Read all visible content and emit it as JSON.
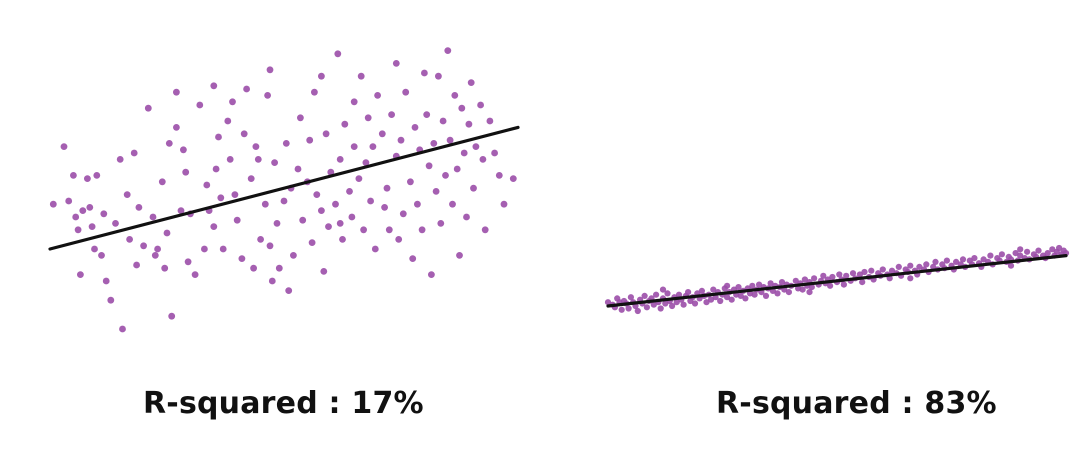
{
  "chart_data": [
    {
      "type": "scatter",
      "title": "R-squared : 17%",
      "caption": "R-squared : 17%",
      "xlabel": "",
      "ylabel": "",
      "grid": false,
      "axes_visible": false,
      "xlim": [
        0,
        100
      ],
      "ylim": [
        0,
        100
      ],
      "point_color": "#9b4ea8",
      "line_color": "#111111",
      "trend_line": {
        "x": [
          0,
          100
        ],
        "y": [
          30,
          68
        ]
      },
      "points": [
        [
          0.7,
          44
        ],
        [
          3,
          62
        ],
        [
          4,
          45
        ],
        [
          5,
          53
        ],
        [
          5.5,
          40
        ],
        [
          6,
          36
        ],
        [
          6.5,
          22
        ],
        [
          7,
          42
        ],
        [
          8,
          52
        ],
        [
          8.5,
          43
        ],
        [
          9,
          37
        ],
        [
          9.5,
          30
        ],
        [
          10,
          53
        ],
        [
          11,
          28
        ],
        [
          11.5,
          41
        ],
        [
          12,
          20
        ],
        [
          13,
          14
        ],
        [
          14,
          38
        ],
        [
          15.5,
          5
        ],
        [
          16.5,
          47
        ],
        [
          17,
          33
        ],
        [
          18,
          60
        ],
        [
          18.5,
          25
        ],
        [
          19,
          43
        ],
        [
          20,
          31
        ],
        [
          21,
          74
        ],
        [
          22,
          40
        ],
        [
          22.5,
          28
        ],
        [
          23,
          30
        ],
        [
          24,
          51
        ],
        [
          24.5,
          24
        ],
        [
          25,
          35
        ],
        [
          25.5,
          63
        ],
        [
          26,
          9
        ],
        [
          27,
          68
        ],
        [
          28,
          42
        ],
        [
          28.5,
          61
        ],
        [
          29,
          54
        ],
        [
          29.5,
          26
        ],
        [
          30,
          41
        ],
        [
          31,
          22
        ],
        [
          32,
          75
        ],
        [
          33,
          30
        ],
        [
          33.5,
          50
        ],
        [
          34,
          42
        ],
        [
          35,
          37
        ],
        [
          35.5,
          55
        ],
        [
          36,
          65
        ],
        [
          36.5,
          46
        ],
        [
          37,
          30
        ],
        [
          38,
          70
        ],
        [
          38.5,
          58
        ],
        [
          39,
          76
        ],
        [
          39.5,
          47
        ],
        [
          40,
          39
        ],
        [
          41,
          27
        ],
        [
          41.5,
          66
        ],
        [
          42,
          80
        ],
        [
          43,
          52
        ],
        [
          43.5,
          24
        ],
        [
          44,
          62
        ],
        [
          44.5,
          58
        ],
        [
          45,
          33
        ],
        [
          46,
          44
        ],
        [
          46.5,
          78
        ],
        [
          47,
          31
        ],
        [
          47.5,
          20
        ],
        [
          48,
          57
        ],
        [
          48.5,
          38
        ],
        [
          49,
          24
        ],
        [
          50,
          45
        ],
        [
          50.5,
          63
        ],
        [
          51,
          17
        ],
        [
          51.5,
          49
        ],
        [
          52,
          28
        ],
        [
          53,
          55
        ],
        [
          53.5,
          71
        ],
        [
          54,
          39
        ],
        [
          55,
          51
        ],
        [
          55.5,
          64
        ],
        [
          56,
          32
        ],
        [
          56.5,
          79
        ],
        [
          57,
          47
        ],
        [
          58,
          42
        ],
        [
          58.5,
          23
        ],
        [
          59,
          66
        ],
        [
          59.5,
          37
        ],
        [
          60,
          54
        ],
        [
          61,
          44
        ],
        [
          61.5,
          91
        ],
        [
          62,
          58
        ],
        [
          62.5,
          33
        ],
        [
          63,
          69
        ],
        [
          64,
          48
        ],
        [
          64.5,
          40
        ],
        [
          65,
          62
        ],
        [
          66,
          52
        ],
        [
          66.5,
          84
        ],
        [
          67,
          36
        ],
        [
          67.5,
          57
        ],
        [
          68,
          71
        ],
        [
          68.5,
          45
        ],
        [
          69,
          62
        ],
        [
          69.5,
          30
        ],
        [
          70,
          78
        ],
        [
          71,
          66
        ],
        [
          71.5,
          43
        ],
        [
          72,
          49
        ],
        [
          72.5,
          36
        ],
        [
          73,
          72
        ],
        [
          74,
          59
        ],
        [
          74.5,
          33
        ],
        [
          75,
          64
        ],
        [
          75.5,
          41
        ],
        [
          76,
          79
        ],
        [
          77,
          51
        ],
        [
          77.5,
          27
        ],
        [
          78,
          68
        ],
        [
          78.5,
          44
        ],
        [
          79,
          61
        ],
        [
          79.5,
          36
        ],
        [
          80,
          85
        ],
        [
          80.5,
          72
        ],
        [
          81,
          56
        ],
        [
          81.5,
          22
        ],
        [
          82,
          63
        ],
        [
          82.5,
          48
        ],
        [
          83,
          84
        ],
        [
          83.5,
          38
        ],
        [
          84,
          70
        ],
        [
          84.5,
          53
        ],
        [
          85,
          92
        ],
        [
          85.5,
          64
        ],
        [
          86,
          44
        ],
        [
          86.5,
          78
        ],
        [
          87,
          55
        ],
        [
          87.5,
          28
        ],
        [
          88,
          74
        ],
        [
          88.5,
          60
        ],
        [
          89,
          40
        ],
        [
          89.5,
          69
        ],
        [
          90,
          82
        ],
        [
          90.5,
          49
        ],
        [
          91,
          62
        ],
        [
          92,
          75
        ],
        [
          92.5,
          58
        ],
        [
          93,
          36
        ],
        [
          94,
          70
        ],
        [
          95,
          60
        ],
        [
          96,
          53
        ],
        [
          97,
          44
        ],
        [
          99,
          52
        ],
        [
          74,
          88
        ],
        [
          65,
          76
        ],
        [
          58,
          84
        ],
        [
          47,
          86
        ],
        [
          35,
          81
        ],
        [
          27,
          79
        ],
        [
          15,
          58
        ],
        [
          62,
          38
        ]
      ]
    },
    {
      "type": "scatter",
      "title": "R-squared : 83%",
      "caption": "R-squared : 83%",
      "xlabel": "",
      "ylabel": "",
      "grid": false,
      "axes_visible": false,
      "xlim": [
        0,
        100
      ],
      "ylim": [
        0,
        100
      ],
      "point_color": "#9b4ea8",
      "line_color": "#111111",
      "trend_line": {
        "x": [
          0,
          100
        ],
        "y": [
          0,
          40
        ]
      },
      "points": [
        [
          0,
          3
        ],
        [
          1,
          1
        ],
        [
          1.5,
          -1
        ],
        [
          2,
          6
        ],
        [
          2.5,
          3
        ],
        [
          3,
          -3
        ],
        [
          3.5,
          4
        ],
        [
          4,
          2
        ],
        [
          4.5,
          -2
        ],
        [
          5,
          7
        ],
        [
          5.5,
          3
        ],
        [
          6,
          0
        ],
        [
          6.5,
          -4
        ],
        [
          7,
          5
        ],
        [
          7.5,
          2
        ],
        [
          8,
          8
        ],
        [
          8.5,
          -1
        ],
        [
          9,
          4
        ],
        [
          9.5,
          6
        ],
        [
          10,
          1
        ],
        [
          10.5,
          9
        ],
        [
          11,
          3
        ],
        [
          11.5,
          -2
        ],
        [
          12,
          6
        ],
        [
          12.5,
          2
        ],
        [
          13,
          10
        ],
        [
          13.5,
          4
        ],
        [
          14,
          0
        ],
        [
          14.5,
          7
        ],
        [
          15,
          3
        ],
        [
          15.5,
          9
        ],
        [
          16,
          5
        ],
        [
          16.5,
          1
        ],
        [
          17,
          8
        ],
        [
          17.5,
          11
        ],
        [
          18,
          4
        ],
        [
          18.5,
          7
        ],
        [
          19,
          2
        ],
        [
          19.5,
          10
        ],
        [
          20,
          6
        ],
        [
          20.5,
          12
        ],
        [
          21,
          8
        ],
        [
          21.5,
          3
        ],
        [
          22,
          9
        ],
        [
          22.5,
          5
        ],
        [
          23,
          13
        ],
        [
          23.5,
          7
        ],
        [
          24,
          11
        ],
        [
          24.5,
          4
        ],
        [
          25,
          9
        ],
        [
          25.5,
          14
        ],
        [
          26,
          7
        ],
        [
          26.5,
          11
        ],
        [
          27,
          5
        ],
        [
          27.5,
          13
        ],
        [
          28,
          9
        ],
        [
          28.5,
          15
        ],
        [
          29,
          8
        ],
        [
          29.5,
          12
        ],
        [
          30,
          6
        ],
        [
          30.5,
          14
        ],
        [
          31,
          10
        ],
        [
          31.5,
          16
        ],
        [
          32,
          9
        ],
        [
          32.5,
          13
        ],
        [
          33,
          17
        ],
        [
          33.5,
          11
        ],
        [
          34,
          15
        ],
        [
          34.5,
          8
        ],
        [
          35,
          14
        ],
        [
          35.5,
          18
        ],
        [
          36,
          12
        ],
        [
          36.5,
          16
        ],
        [
          37,
          10
        ],
        [
          37.5,
          15
        ],
        [
          38,
          19
        ],
        [
          38.5,
          13
        ],
        [
          39,
          17
        ],
        [
          39.5,
          11
        ],
        [
          40,
          16
        ],
        [
          41,
          20
        ],
        [
          41.5,
          14
        ],
        [
          42,
          18
        ],
        [
          42.5,
          13
        ],
        [
          43,
          21
        ],
        [
          43.5,
          16
        ],
        [
          44,
          19
        ],
        [
          44.5,
          15
        ],
        [
          45,
          22
        ],
        [
          46,
          17
        ],
        [
          46.5,
          20
        ],
        [
          47,
          24
        ],
        [
          47.5,
          18
        ],
        [
          48,
          21
        ],
        [
          48.5,
          16
        ],
        [
          49,
          23
        ],
        [
          50,
          19
        ],
        [
          50.5,
          25
        ],
        [
          51,
          21
        ],
        [
          51.5,
          17
        ],
        [
          52,
          24
        ],
        [
          53,
          20
        ],
        [
          53.5,
          26
        ],
        [
          54,
          22
        ],
        [
          55,
          25
        ],
        [
          55.5,
          19
        ],
        [
          56,
          27
        ],
        [
          57,
          23
        ],
        [
          57.5,
          28
        ],
        [
          58,
          21
        ],
        [
          59,
          26
        ],
        [
          59.5,
          24
        ],
        [
          60,
          29
        ],
        [
          61,
          25
        ],
        [
          61.5,
          22
        ],
        [
          62,
          28
        ],
        [
          63,
          26
        ],
        [
          63.5,
          31
        ],
        [
          64,
          24
        ],
        [
          65,
          29
        ],
        [
          65.5,
          27
        ],
        [
          66,
          32
        ],
        [
          67,
          28
        ],
        [
          67.5,
          25
        ],
        [
          68,
          31
        ],
        [
          69,
          29
        ],
        [
          69.5,
          33
        ],
        [
          70,
          27
        ],
        [
          71,
          31
        ],
        [
          71.5,
          35
        ],
        [
          72,
          29
        ],
        [
          73,
          33
        ],
        [
          73.5,
          30
        ],
        [
          74,
          36
        ],
        [
          75,
          32
        ],
        [
          75.5,
          29
        ],
        [
          76,
          35
        ],
        [
          77,
          33
        ],
        [
          77.5,
          37
        ],
        [
          78,
          31
        ],
        [
          79,
          36
        ],
        [
          79.5,
          33
        ],
        [
          80,
          38
        ],
        [
          81,
          34
        ],
        [
          81.5,
          31
        ],
        [
          82,
          37
        ],
        [
          83,
          35
        ],
        [
          83.5,
          40
        ],
        [
          84,
          33
        ],
        [
          85,
          38
        ],
        [
          85.5,
          36
        ],
        [
          86,
          41
        ],
        [
          87,
          35
        ],
        [
          87.5,
          39
        ],
        [
          88,
          37
        ],
        [
          89,
          42
        ],
        [
          89.5,
          36
        ],
        [
          90,
          40
        ],
        [
          91,
          38
        ],
        [
          91.5,
          43
        ],
        [
          92,
          37
        ],
        [
          93,
          41
        ],
        [
          93.5,
          39
        ],
        [
          94,
          44
        ],
        [
          95,
          40
        ],
        [
          95.5,
          38
        ],
        [
          96,
          42
        ],
        [
          97,
          45
        ],
        [
          97.5,
          40
        ],
        [
          98,
          43
        ],
        [
          98.5,
          46
        ],
        [
          99,
          41
        ],
        [
          99.5,
          44
        ],
        [
          100,
          42
        ],
        [
          88,
          32
        ],
        [
          66,
          22
        ],
        [
          44,
          11
        ],
        [
          26,
          16
        ],
        [
          12,
          13
        ],
        [
          90,
          45
        ]
      ]
    }
  ]
}
